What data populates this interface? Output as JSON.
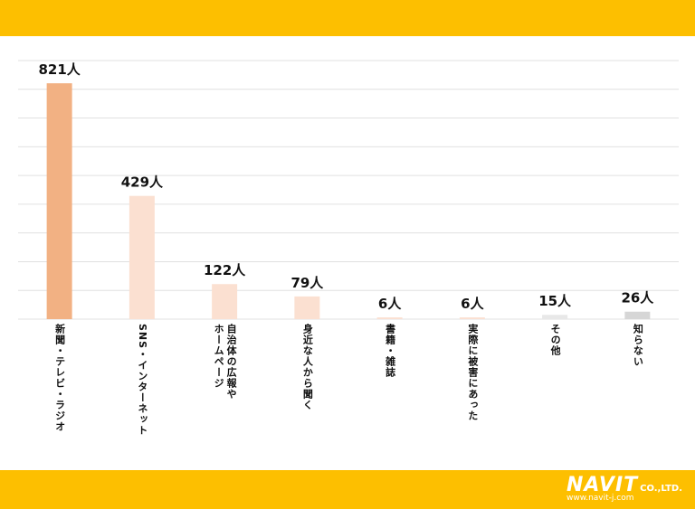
{
  "chart_data": {
    "type": "bar",
    "categories": [
      "新聞・テレビ・ラジオ",
      "SNS・インターネット",
      "自治体の広報や\nホームページ",
      "身近な人から聞く",
      "書籍・雑誌",
      "実際に被害にあった",
      "その他",
      "知らない"
    ],
    "values": [
      821,
      429,
      122,
      79,
      6,
      6,
      15,
      26
    ],
    "value_labels": [
      "821人",
      "429人",
      "122人",
      "79人",
      "6人",
      "6人",
      "15人",
      "26人"
    ],
    "colors": [
      "#f2b183",
      "#fbe0d1",
      "#fbe0d1",
      "#fbe0d1",
      "#fbe0d1",
      "#fbe0d1",
      "#e8e8e8",
      "#d6d6d6"
    ],
    "ylim": [
      0,
      900
    ],
    "yticks": [
      0,
      100,
      200,
      300,
      400,
      500,
      600,
      700,
      800,
      900
    ],
    "grid": true
  },
  "logo": {
    "name": "NAVIT",
    "suffix": "CO.,LTD.",
    "url": "www.navit-j.com"
  }
}
